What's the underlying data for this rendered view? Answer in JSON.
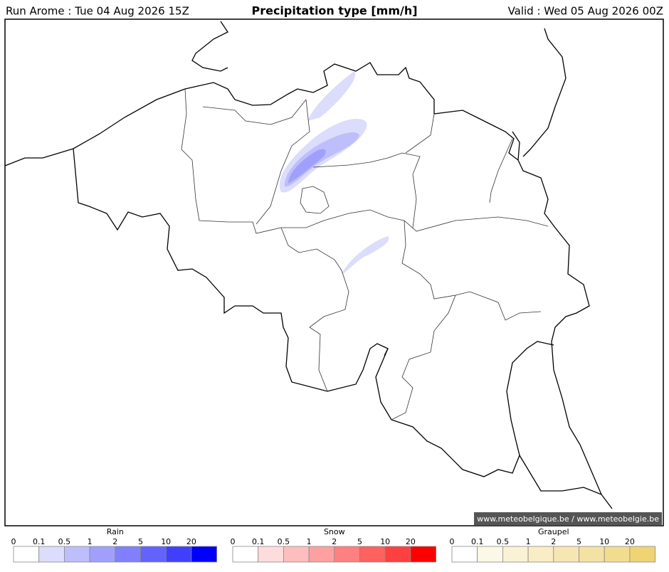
{
  "header": {
    "run": "Run Arome : Tue 04 Aug 2026 15Z",
    "title": "Precipitation type [mm/h]",
    "valid": "Valid : Wed 05 Aug 2026 00Z"
  },
  "credit": "© www.meteobelgique.be / www.meteobelgie.be",
  "legends": [
    {
      "title": "Rain",
      "ticks": [
        0,
        0.1,
        0.5,
        1,
        2,
        5,
        10,
        20
      ],
      "colors": [
        "#ffffff",
        "#dcdcfc",
        "#bebefc",
        "#a0a0fc",
        "#8080fc",
        "#6262fc",
        "#4040fc",
        "#0000fc"
      ]
    },
    {
      "title": "Snow",
      "ticks": [
        0,
        0.1,
        0.5,
        1,
        2,
        5,
        10,
        20
      ],
      "colors": [
        "#ffffff",
        "#ffdcdc",
        "#ffbebe",
        "#ffa0a0",
        "#ff8080",
        "#ff6060",
        "#ff4040",
        "#ff0000"
      ]
    },
    {
      "title": "Graupel",
      "ticks": [
        0,
        0.1,
        0.5,
        1,
        2,
        5,
        10,
        20
      ],
      "colors": [
        "#ffffff",
        "#fcf8e6",
        "#faf2d4",
        "#f8edc4",
        "#f6e7b2",
        "#f4e2a2",
        "#f2dc90",
        "#f0d474"
      ]
    }
  ]
}
